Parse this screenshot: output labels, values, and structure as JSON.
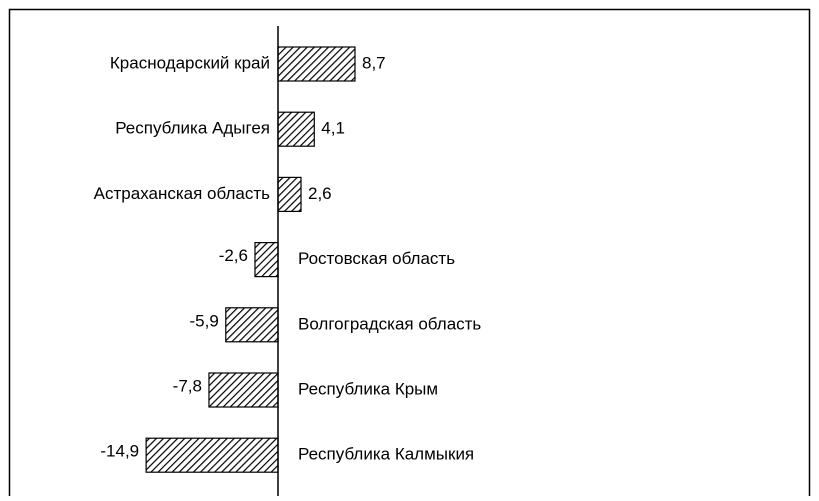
{
  "chart_data": {
    "type": "barh",
    "categories": [
      "Краснодарский край",
      "Республика Адыгея",
      "Астраханская область",
      "Ростовская область",
      "Волгоградская область",
      "Республика Крым",
      "Республика Калмыкия"
    ],
    "values": [
      8.7,
      4.1,
      2.6,
      -2.6,
      -5.9,
      -7.8,
      -14.9
    ],
    "value_labels": [
      "8,7",
      "4,1",
      "2,6",
      "-2,6",
      "-5,9",
      "-7,8",
      "-14,9"
    ],
    "color": "#000000"
  }
}
